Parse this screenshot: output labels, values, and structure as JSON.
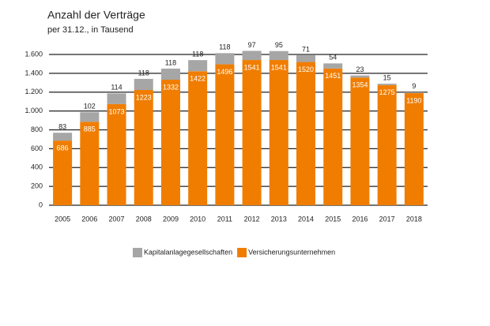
{
  "chart_data": {
    "type": "bar",
    "stacked": true,
    "title": "Anzahl der Verträge",
    "subtitle": "per 31.12., in Tausend",
    "categories": [
      "2005",
      "2006",
      "2007",
      "2008",
      "2009",
      "2010",
      "2011",
      "2012",
      "2013",
      "2014",
      "2015",
      "2016",
      "2017",
      "2018"
    ],
    "series": [
      {
        "name": "Versicherungsunternehmen",
        "color": "#f07d00",
        "values": [
          686,
          885,
          1073,
          1223,
          1332,
          1422,
          1496,
          1541,
          1541,
          1520,
          1451,
          1354,
          1275,
          1190
        ]
      },
      {
        "name": "Kapitalanlagegesellschaften",
        "color": "#a6a6a6",
        "values": [
          83,
          102,
          114,
          118,
          118,
          118,
          118,
          97,
          95,
          71,
          54,
          23,
          15,
          9
        ]
      }
    ],
    "legend_order": [
      1,
      0
    ],
    "legend": "bottom",
    "ylim": [
      0,
      1600
    ],
    "yticks": [
      0,
      200,
      400,
      600,
      800,
      {
        "value": 1000,
        "label": "1.000"
      },
      {
        "value": 1200,
        "label": "1.200"
      },
      {
        "value": 1400,
        "label": "1.400"
      },
      {
        "value": 1600,
        "label": "1.600"
      }
    ],
    "grid": true
  }
}
